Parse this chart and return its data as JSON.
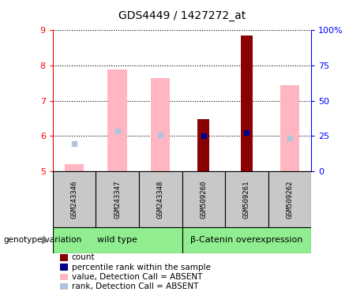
{
  "title": "GDS4449 / 1427272_at",
  "samples": [
    "GSM243346",
    "GSM243347",
    "GSM243348",
    "GSM509260",
    "GSM509261",
    "GSM509262"
  ],
  "group_labels": [
    "wild type",
    "β-Catenin overexpression"
  ],
  "ylim_left": [
    5,
    9
  ],
  "ylim_right": [
    0,
    100
  ],
  "yticks_left": [
    5,
    6,
    7,
    8,
    9
  ],
  "yticks_right": [
    0,
    25,
    50,
    75,
    100
  ],
  "count_values": [
    null,
    null,
    null,
    6.48,
    8.85,
    null
  ],
  "count_bottom": [
    null,
    null,
    null,
    5.0,
    5.0,
    null
  ],
  "rank_values": [
    null,
    null,
    null,
    6.0,
    6.1,
    null
  ],
  "value_absent": [
    5.2,
    7.9,
    7.65,
    null,
    null,
    7.45
  ],
  "value_absent_bottom": [
    5.0,
    5.0,
    5.0,
    null,
    null,
    5.0
  ],
  "rank_absent": [
    5.78,
    6.15,
    6.02,
    null,
    null,
    5.93
  ],
  "count_color": "#8B0000",
  "rank_color": "#00008B",
  "value_absent_color": "#FFB6C1",
  "rank_absent_color": "#B0C4DE",
  "green_color": "#90EE90",
  "gray_color": "#C8C8C8",
  "legend_items": [
    {
      "color": "#8B0000",
      "label": "count"
    },
    {
      "color": "#00008B",
      "label": "percentile rank within the sample"
    },
    {
      "color": "#FFB6C1",
      "label": "value, Detection Call = ABSENT"
    },
    {
      "color": "#B0C4DE",
      "label": "rank, Detection Call = ABSENT"
    }
  ]
}
